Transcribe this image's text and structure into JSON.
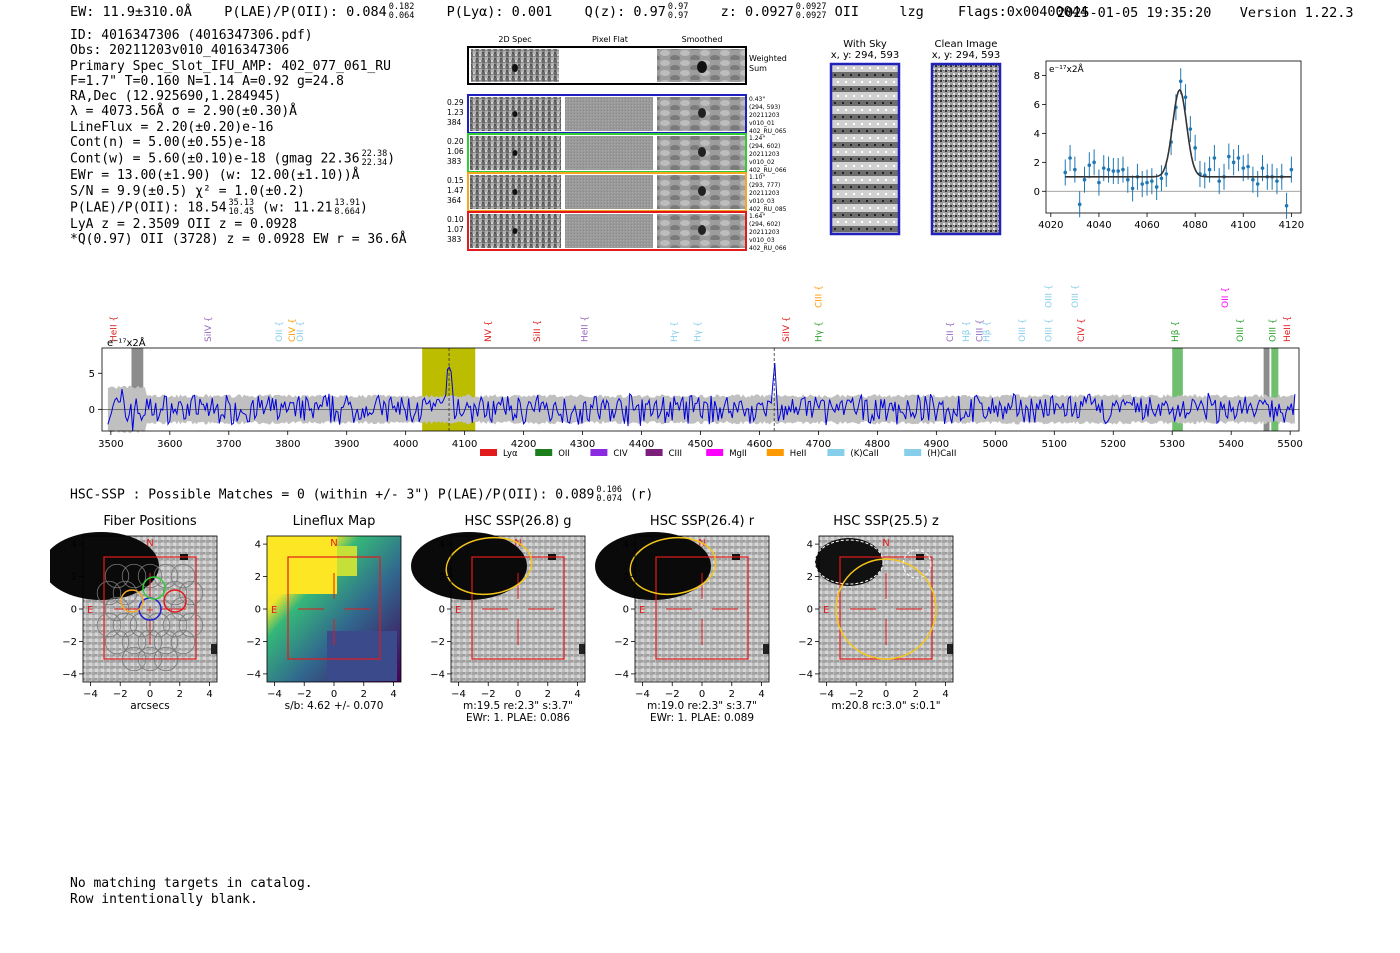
{
  "header": {
    "ew": "EW: 11.9±310.0Å",
    "plae_label": "P(LAE)/P(OII): 0.084",
    "plae_hi": "0.182",
    "plae_lo": "0.064",
    "plya_label": "P(Lyα): 0.001",
    "qz_label": "Q(z): 0.97",
    "qz_hi": "0.97",
    "qz_lo": "0.97",
    "z_label": "z: 0.0927",
    "z_hi": "0.0927",
    "z_lo": "0.0927",
    "z_line": "OII",
    "lzg": "lzg",
    "flags": "Flags:0x00400044",
    "timestamp": "2025-01-05 19:35:20",
    "version": "Version 1.22.3"
  },
  "info": {
    "id": "ID: 4016347306 (4016347306.pdf)",
    "obs": "Obs: 20211203v010_4016347306",
    "primary": "Primary Spec_Slot_IFU_AMP: 402_077_061_RU",
    "params": "F=1.7\"  T=0.160  N=1.14  A=0.92  g=24.8",
    "radec": "RA,Dec (12.925690,1.284945)",
    "lambda": "λ = 4073.56Å  σ = 2.90(±0.30)Å",
    "lineflux": "LineFlux = 2.20(±0.20)e-16",
    "contn": "Cont(n) = 5.00(±0.55)e-18",
    "contw": "Cont(w) = 5.60(±0.10)e-18 (gmag 22.36",
    "contw_hi": "22.38",
    "contw_lo": "22.34",
    "contw_end": ")",
    "ewr": "EWr = 13.00(±1.90) (w: 12.00(±1.10))Å",
    "sn": "S/N = 9.9(±0.5)  χ² = 1.0(±0.2)",
    "plae": "P(LAE)/P(OII): 18.54",
    "plae_hi": "35.13",
    "plae_lo": "10.45",
    "plae_w": "(w: 11.21",
    "plae_w_hi": "13.91",
    "plae_w_lo": "8.664",
    "plae_end": ")",
    "lya": "LyA z = 2.3509  OII z = 0.0928",
    "q": "*Q(0.97) OII (3728) z = 0.0928  EW r = 36.6Å"
  },
  "cutouts": {
    "col_labels": [
      "2D Spec",
      "Pixel Flat",
      "Smoothed"
    ],
    "weighted": [
      "Weighted",
      "Sum"
    ],
    "rows": [
      {
        "left": [
          "0.29",
          "1.23",
          "384"
        ],
        "right": [
          "0.43\"",
          "(294, 593)",
          "20211203",
          "v010_01",
          "402_RU_065"
        ],
        "color": "#1f1fbf"
      },
      {
        "left": [
          "0.20",
          "1.06",
          "383"
        ],
        "right": [
          "1.24\"",
          "(294, 602)",
          "20211203",
          "v010_02",
          "402_RU_066"
        ],
        "color": "#33cc33"
      },
      {
        "left": [
          "0.15",
          "1.47",
          "364"
        ],
        "right": [
          "1.10\"",
          "(293, 777)",
          "20211203",
          "v010_03",
          "402_RU_085"
        ],
        "color": "#f5a623"
      },
      {
        "left": [
          "0.10",
          "1.07",
          "383"
        ],
        "right": [
          "1.64\"",
          "(294, 602)",
          "20211203",
          "v010_03",
          "402_RU_066"
        ],
        "color": "#e31a1c"
      }
    ],
    "sky_title": "With Sky",
    "sky_coords": "x, y: 294, 593",
    "clean_title": "Clean Image",
    "clean_coords": "x, y: 294, 593"
  },
  "fit_chart": {
    "type": "scatter",
    "unit_label": "e⁻¹⁷x2Å",
    "xlim": [
      4018,
      4124
    ],
    "ylim": [
      -1.5,
      9
    ],
    "xticks": [
      4020,
      4040,
      4060,
      4080,
      4100,
      4120
    ],
    "yticks": [
      0,
      2,
      4,
      6,
      8
    ],
    "points_x": [
      4026,
      4028,
      4030,
      4032,
      4034,
      4036,
      4038,
      4040,
      4042,
      4044,
      4046,
      4048,
      4050,
      4052,
      4054,
      4056,
      4058,
      4060,
      4062,
      4064,
      4066,
      4068,
      4070,
      4072,
      4074,
      4076,
      4078,
      4080,
      4082,
      4084,
      4086,
      4088,
      4090,
      4092,
      4094,
      4096,
      4098,
      4100,
      4102,
      4104,
      4106,
      4108,
      4110,
      4112,
      4114,
      4116,
      4118,
      4120
    ],
    "points_y": [
      1.3,
      2.3,
      1.5,
      -0.9,
      0.8,
      1.8,
      2.0,
      0.6,
      1.6,
      1.5,
      1.4,
      1.4,
      1.5,
      0.8,
      0.2,
      1.0,
      0.5,
      0.6,
      0.7,
      0.3,
      0.9,
      1.2,
      3.4,
      5.8,
      7.6,
      6.5,
      4.3,
      3.0,
      1.2,
      1.1,
      1.5,
      2.3,
      0.7,
      1.0,
      2.4,
      2.0,
      2.3,
      1.6,
      1.7,
      0.8,
      0.5,
      1.6,
      1.0,
      1.0,
      0.7,
      1.0,
      -1.0,
      1.5
    ],
    "errors": [
      0.9,
      0.9,
      0.9,
      0.9,
      0.9,
      0.9,
      0.9,
      0.9,
      0.9,
      0.9,
      0.9,
      0.9,
      0.9,
      0.9,
      0.9,
      0.9,
      0.9,
      0.9,
      0.9,
      0.9,
      0.9,
      0.9,
      0.9,
      0.9,
      0.9,
      0.9,
      0.9,
      0.9,
      0.9,
      0.9,
      0.9,
      0.9,
      0.9,
      0.9,
      0.9,
      0.9,
      0.9,
      0.9,
      0.9,
      0.9,
      0.9,
      0.9,
      0.9,
      0.9,
      0.9,
      0.9,
      0.9,
      0.9
    ],
    "model": {
      "center": 4073.56,
      "sigma": 2.9,
      "amplitude": 6.0,
      "baseline": 1.0
    }
  },
  "spectrum": {
    "type": "line",
    "unit_label": "e⁻¹⁷x2Å",
    "xlim": [
      3485,
      5515
    ],
    "ylim": [
      -3,
      8.5
    ],
    "xticks": [
      3500,
      3600,
      3700,
      3800,
      3900,
      4000,
      4100,
      4200,
      4300,
      4400,
      4500,
      4600,
      4700,
      4800,
      4900,
      5000,
      5100,
      5200,
      5300,
      5400,
      5500
    ],
    "yticks": [
      0,
      5
    ],
    "highlight_band": [
      4028,
      4118
    ],
    "detected_line": 4073.56,
    "other_peak": 4625,
    "green_bands": [
      [
        5300,
        5318
      ],
      [
        5468,
        5480
      ]
    ],
    "gray_bands": [
      [
        3535,
        3555
      ],
      [
        5455,
        5465
      ]
    ],
    "line_labels": [
      {
        "name": "HeII",
        "wave": 3510,
        "color": "#d62728",
        "row": 0
      },
      {
        "name": "SiIV",
        "wave": 3670,
        "color": "#9467bd",
        "row": 0
      },
      {
        "name": "OII",
        "wave": 3790,
        "color": "#87ceeb",
        "row": 0
      },
      {
        "name": "CIV",
        "wave": 3812,
        "color": "#ff9900",
        "row": 0
      },
      {
        "name": "OII",
        "wave": 3826,
        "color": "#87ceeb",
        "row": 0
      },
      {
        "name": "NV",
        "wave": 4145,
        "color": "#e31a1c",
        "row": 0
      },
      {
        "name": "SiII",
        "wave": 4228,
        "color": "#e31a1c",
        "row": 0
      },
      {
        "name": "HeII",
        "wave": 4308,
        "color": "#9467bd",
        "row": 0
      },
      {
        "name": "Hγ",
        "wave": 4460,
        "color": "#87ceeb",
        "row": 0
      },
      {
        "name": "Hγ",
        "wave": 4500,
        "color": "#87ceeb",
        "row": 0
      },
      {
        "name": "SiIV",
        "wave": 4650,
        "color": "#e31a1c",
        "row": 0
      },
      {
        "name": "CIII",
        "wave": 4705,
        "color": "#ff9900",
        "row": 1
      },
      {
        "name": "Hγ",
        "wave": 4705,
        "color": "#2ca02c",
        "row": 0
      },
      {
        "name": "CII",
        "wave": 4928,
        "color": "#9467bd",
        "row": 0
      },
      {
        "name": "Hβ",
        "wave": 4955,
        "color": "#87ceeb",
        "row": 0
      },
      {
        "name": "CIII",
        "wave": 4978,
        "color": "#9467bd",
        "row": 0
      },
      {
        "name": "Hβ",
        "wave": 4990,
        "color": "#87ceeb",
        "row": 0
      },
      {
        "name": "OIII",
        "wave": 5050,
        "color": "#87ceeb",
        "row": 0
      },
      {
        "name": "OIII",
        "wave": 5095,
        "color": "#87ceeb",
        "row": 0
      },
      {
        "name": "OIII",
        "wave": 5095,
        "color": "#87ceeb",
        "row": 1
      },
      {
        "name": "OIII",
        "wave": 5140,
        "color": "#87ceeb",
        "row": 1
      },
      {
        "name": "CIV",
        "wave": 5150,
        "color": "#e31a1c",
        "row": 0
      },
      {
        "name": "Hβ",
        "wave": 5310,
        "color": "#2ca02c",
        "row": 0
      },
      {
        "name": "OIII",
        "wave": 5420,
        "color": "#2ca02c",
        "row": 0
      },
      {
        "name": "OII",
        "wave": 5395,
        "color": "#ff00ff",
        "row": 1
      },
      {
        "name": "OIII",
        "wave": 5475,
        "color": "#2ca02c",
        "row": 0
      },
      {
        "name": "HeII",
        "wave": 5500,
        "color": "#e31a1c",
        "row": 0
      }
    ],
    "legend": [
      {
        "label": "Lyα",
        "color": "#e31a1c"
      },
      {
        "label": "OII",
        "color": "#1a7f1a"
      },
      {
        "label": "CIV",
        "color": "#8a2be2"
      },
      {
        "label": "CIII",
        "color": "#7b1f7b"
      },
      {
        "label": "MgII",
        "color": "#ff00ff"
      },
      {
        "label": "HeII",
        "color": "#ff9900"
      },
      {
        "label": "(K)CaII",
        "color": "#87ceeb"
      },
      {
        "label": "(H)CaII",
        "color": "#87ceeb"
      }
    ]
  },
  "hsc": {
    "header": "HSC-SSP : Possible Matches = 0 (within +/- 3\")  P(LAE)/P(OII): 0.089",
    "hi": "0.106",
    "lo": "0.074",
    "band": "(r)",
    "panels": [
      {
        "title": "Fiber Positions",
        "cap1": "arcsecs",
        "cap2": ""
      },
      {
        "title": "Lineflux Map",
        "cap1": "s/b: 4.62 +/- 0.070",
        "cap2": ""
      },
      {
        "title": "HSC SSP(26.8) g",
        "cap1": "m:19.5  re:2.3\"  s:3.7\"",
        "cap2": "EWr: 1. PLAE: 0.086"
      },
      {
        "title": "HSC SSP(26.4) r",
        "cap1": "m:19.0  re:2.3\"  s:3.7\"",
        "cap2": "EWr: 1. PLAE: 0.089"
      },
      {
        "title": "HSC SSP(25.5) z",
        "cap1": "m:20.8 rc:3.0\"  s:0.1\"",
        "cap2": ""
      }
    ],
    "ticks": [
      "−4",
      "−2",
      "0",
      "2",
      "4"
    ],
    "north": "N",
    "east": "E"
  },
  "footer": {
    "line1": "No matching targets in catalog.",
    "line2": "Row intentionally blank."
  }
}
